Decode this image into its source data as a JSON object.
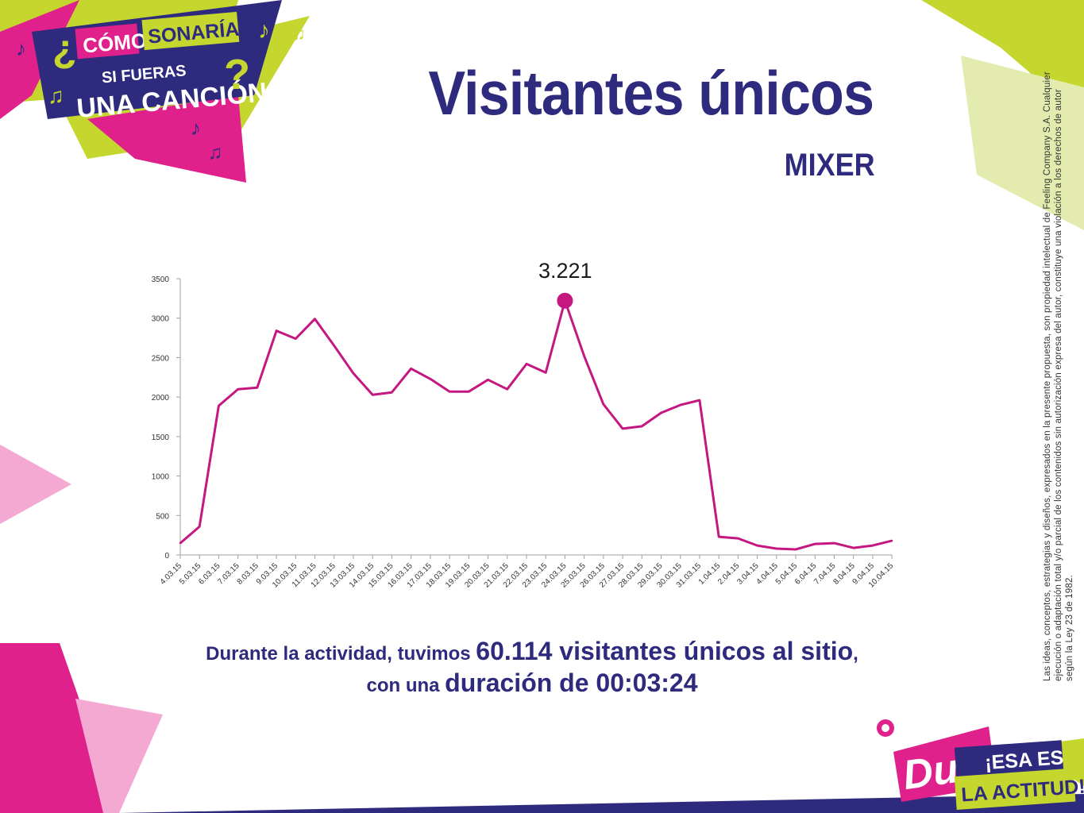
{
  "header": {
    "title": "Visitantes únicos",
    "subtitle": "MIXER"
  },
  "campaign_logo": {
    "line1_a": "¿",
    "line1_b": "CÓMO",
    "line1_c": "SONARÍAS",
    "line2": "SI FUERAS",
    "line3": "UNA CANCIÓN",
    "line3_q": "?"
  },
  "brand_logo": {
    "brand": "Dux",
    "tagline1": "¡ESA ES",
    "tagline2": "LA ACTITUD!"
  },
  "summary": {
    "p1": "Durante la actividad, tuvimos ",
    "p2": "60.114 visitantes únicos al sitio",
    "p3": ", con una ",
    "p4": "duración de 00:03:24"
  },
  "legal_note": "Las ideas, conceptos, estrategias y diseños, expresados en la presente propuesta, son propiedad intelectual de Feeling Company S.A. Cualquier ejecución o adaptación total y/o parcial de los contenidos sin autorización expresa del autor, constituye una violación a los derechos de autor según la Ley 23 de 1982.",
  "colors": {
    "navy": "#2e2a7e",
    "magenta": "#e0208b",
    "line": "#c41880",
    "lime": "#c5d62e",
    "lime_light": "#e3ebae",
    "pink_light": "#f4a9d2"
  },
  "chart_data": {
    "type": "line",
    "x": [
      "4.03.15",
      "5.03.15",
      "6.03.15",
      "7.03.15",
      "8.03.15",
      "9.03.15",
      "10.03.15",
      "11.03.15",
      "12.03.15",
      "13.03.15",
      "14.03.15",
      "15.03.15",
      "16.03.15",
      "17.03.15",
      "18.03.15",
      "19.03.15",
      "20.03.15",
      "21.03.15",
      "22.03.15",
      "23.03.15",
      "24.03.15",
      "25.03.15",
      "26.03.15",
      "27.03.15",
      "28.03.15",
      "29.03.15",
      "30.03.15",
      "31.03.15",
      "1.04.15",
      "2.04.15",
      "3.04.15",
      "4.04.15",
      "5.04.15",
      "6.04.15",
      "7.04.15",
      "8.04.15",
      "9.04.15",
      "10.04.15"
    ],
    "series": [
      {
        "values": [
          150,
          360,
          1890,
          2100,
          2120,
          2840,
          2740,
          2990,
          2650,
          2300,
          2030,
          2060,
          2360,
          2230,
          2070,
          2070,
          2220,
          2100,
          2420,
          2310,
          3221,
          2520,
          1910,
          1600,
          1630,
          1800,
          1900,
          1960,
          230,
          210,
          120,
          80,
          70,
          140,
          150,
          90,
          120,
          180
        ]
      }
    ],
    "yticks": [
      "0",
      "500",
      "1000",
      "1500",
      "2000",
      "2500",
      "3000",
      "3500"
    ],
    "ylim": [
      0,
      3500
    ],
    "highlight": {
      "index": 20,
      "label": "3.221"
    },
    "grid": false,
    "legend": "none"
  }
}
